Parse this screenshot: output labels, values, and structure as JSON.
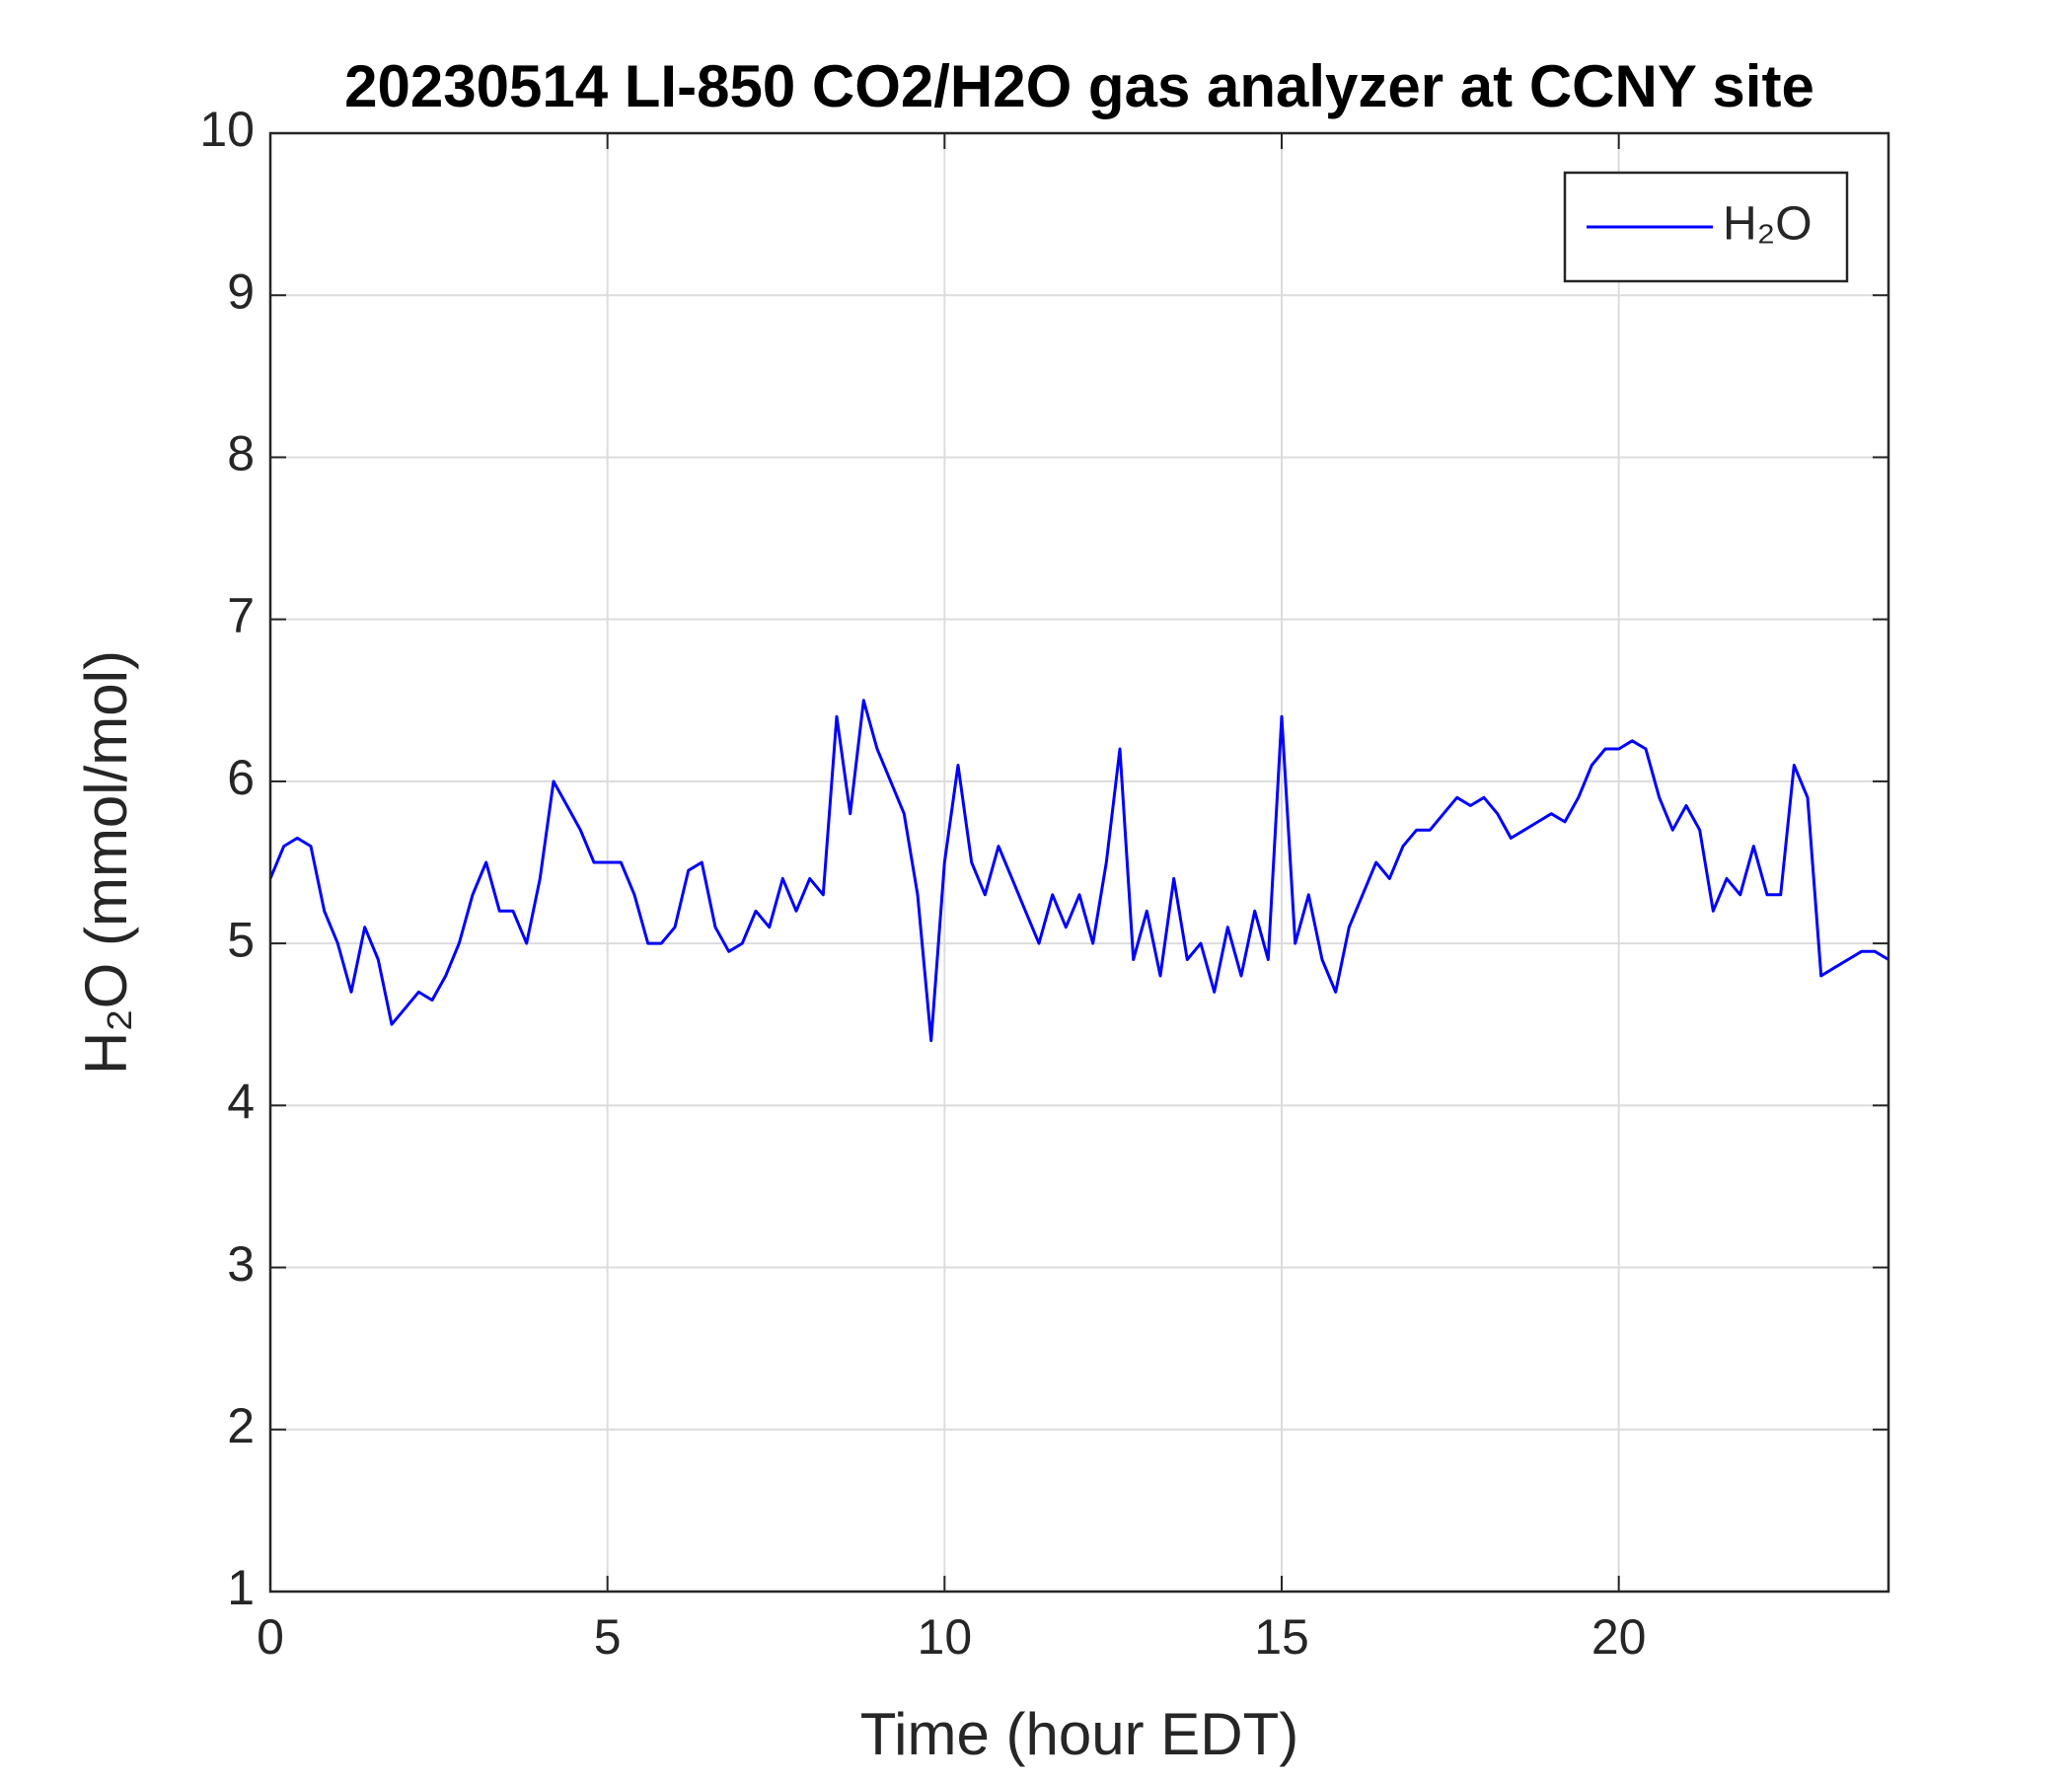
{
  "chart_data": {
    "type": "line",
    "title": "20230514 LI-850 CO2/H2O gas analyzer at CCNY site",
    "xlabel": "Time (hour EDT)",
    "ylabel": "H₂O (mmol/mol)",
    "xlim": [
      0,
      24
    ],
    "xticks": [
      0,
      5,
      10,
      15,
      20
    ],
    "ylim": [
      1,
      10
    ],
    "yticks": [
      1,
      2,
      3,
      4,
      5,
      6,
      7,
      8,
      9,
      10
    ],
    "grid": true,
    "legend": "upper right",
    "x": [
      0,
      0.2,
      0.4,
      0.6,
      0.8,
      1,
      1.2,
      1.4,
      1.6,
      1.8,
      2,
      2.2,
      2.4,
      2.6,
      2.8,
      3,
      3.2,
      3.4,
      3.6,
      3.8,
      4,
      4.2,
      4.4,
      4.6,
      4.8,
      5,
      5.2,
      5.4,
      5.6,
      5.8,
      6,
      6.2,
      6.4,
      6.6,
      6.8,
      7,
      7.2,
      7.4,
      7.6,
      7.8,
      8,
      8.2,
      8.4,
      8.6,
      8.8,
      9,
      9.2,
      9.4,
      9.6,
      9.8,
      10,
      10.2,
      10.4,
      10.6,
      10.8,
      11,
      11.2,
      11.4,
      11.6,
      11.8,
      12,
      12.2,
      12.4,
      12.6,
      12.8,
      13,
      13.2,
      13.4,
      13.6,
      13.8,
      14,
      14.2,
      14.4,
      14.6,
      14.8,
      15,
      15.2,
      15.4,
      15.6,
      15.8,
      16,
      16.2,
      16.4,
      16.6,
      16.8,
      17,
      17.2,
      17.4,
      17.6,
      17.8,
      18,
      18.2,
      18.4,
      18.6,
      18.8,
      19,
      19.2,
      19.4,
      19.6,
      19.8,
      20,
      20.2,
      20.4,
      20.6,
      20.8,
      21,
      21.2,
      21.4,
      21.6,
      21.8,
      22,
      22.2,
      22.4,
      22.6,
      22.8,
      23,
      23.2,
      23.4,
      23.6,
      23.8,
      24
    ],
    "series": [
      {
        "name": "H₂O",
        "color": "#0000ff",
        "values": [
          5.4,
          5.6,
          5.65,
          5.6,
          5.2,
          5.0,
          4.7,
          5.1,
          4.9,
          4.5,
          4.6,
          4.7,
          4.65,
          4.8,
          5.0,
          5.3,
          5.5,
          5.2,
          5.2,
          5.0,
          5.4,
          6.0,
          5.85,
          5.7,
          5.5,
          5.5,
          5.5,
          5.3,
          5.0,
          5.0,
          5.1,
          5.45,
          5.5,
          5.1,
          4.95,
          5.0,
          5.2,
          5.1,
          5.4,
          5.2,
          5.4,
          5.3,
          6.4,
          5.8,
          6.5,
          6.2,
          6.0,
          5.8,
          5.3,
          4.4,
          5.5,
          6.1,
          5.5,
          5.3,
          5.6,
          5.4,
          5.2,
          5.0,
          5.3,
          5.1,
          5.3,
          5.0,
          5.5,
          6.2,
          4.9,
          5.2,
          4.8,
          5.4,
          4.9,
          5.0,
          4.7,
          5.1,
          4.8,
          5.2,
          4.9,
          6.4,
          5.0,
          5.3,
          4.9,
          4.7,
          5.1,
          5.3,
          5.5,
          5.4,
          5.6,
          5.7,
          5.7,
          5.8,
          5.9,
          5.85,
          5.9,
          5.8,
          5.65,
          5.7,
          5.75,
          5.8,
          5.75,
          5.9,
          6.1,
          6.2,
          6.2,
          6.25,
          6.2,
          5.9,
          5.7,
          5.85,
          5.7,
          5.2,
          5.4,
          5.3,
          5.6,
          5.3,
          5.3,
          6.1,
          5.9,
          4.8,
          4.85,
          4.9,
          4.95,
          4.95,
          4.9
        ]
      }
    ]
  }
}
